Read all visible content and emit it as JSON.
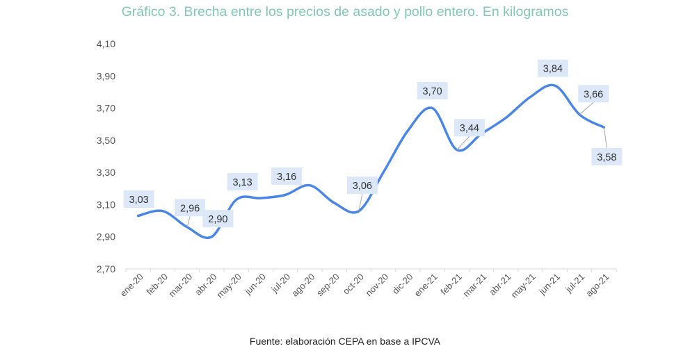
{
  "chart_data": {
    "type": "line",
    "title": "Gráfico 3. Brecha entre los precios de asado y pollo entero. En kilogramos",
    "source": "Fuente: elaboración CEPA en base a IPCVA",
    "xlabel": "",
    "ylabel": "",
    "categories": [
      "ene-20",
      "feb-20",
      "mar-20",
      "abr-20",
      "may-20",
      "jun-20",
      "jul-20",
      "ago-20",
      "sep-20",
      "oct-20",
      "nov-20",
      "dic-20",
      "ene-21",
      "feb-21",
      "mar-21",
      "abr-21",
      "may-21",
      "jun-21",
      "jul-21",
      "ago-21"
    ],
    "series": [
      {
        "values": [
          3.03,
          3.06,
          2.96,
          2.9,
          3.13,
          3.14,
          3.16,
          3.22,
          3.11,
          3.06,
          3.3,
          3.56,
          3.7,
          3.44,
          3.54,
          3.64,
          3.77,
          3.84,
          3.66,
          3.58
        ]
      }
    ],
    "data_labels": [
      {
        "index": 0,
        "text": "3,03"
      },
      {
        "index": 2,
        "text": "2,96"
      },
      {
        "index": 3,
        "text": "2,90"
      },
      {
        "index": 4,
        "text": "3,13"
      },
      {
        "index": 6,
        "text": "3,16"
      },
      {
        "index": 9,
        "text": "3,06"
      },
      {
        "index": 12,
        "text": "3,70"
      },
      {
        "index": 13,
        "text": "3,44"
      },
      {
        "index": 17,
        "text": "3,84"
      },
      {
        "index": 18,
        "text": "3,66"
      },
      {
        "index": 19,
        "text": "3,58"
      }
    ],
    "ylim": [
      2.7,
      4.1
    ],
    "yticks": [
      "2,70",
      "2,90",
      "3,10",
      "3,30",
      "3,50",
      "3,70",
      "3,90",
      "4,10"
    ],
    "grid": false,
    "legend": "none",
    "line_color": "#4a86e8",
    "label_bg_color": "#dce7f8"
  }
}
